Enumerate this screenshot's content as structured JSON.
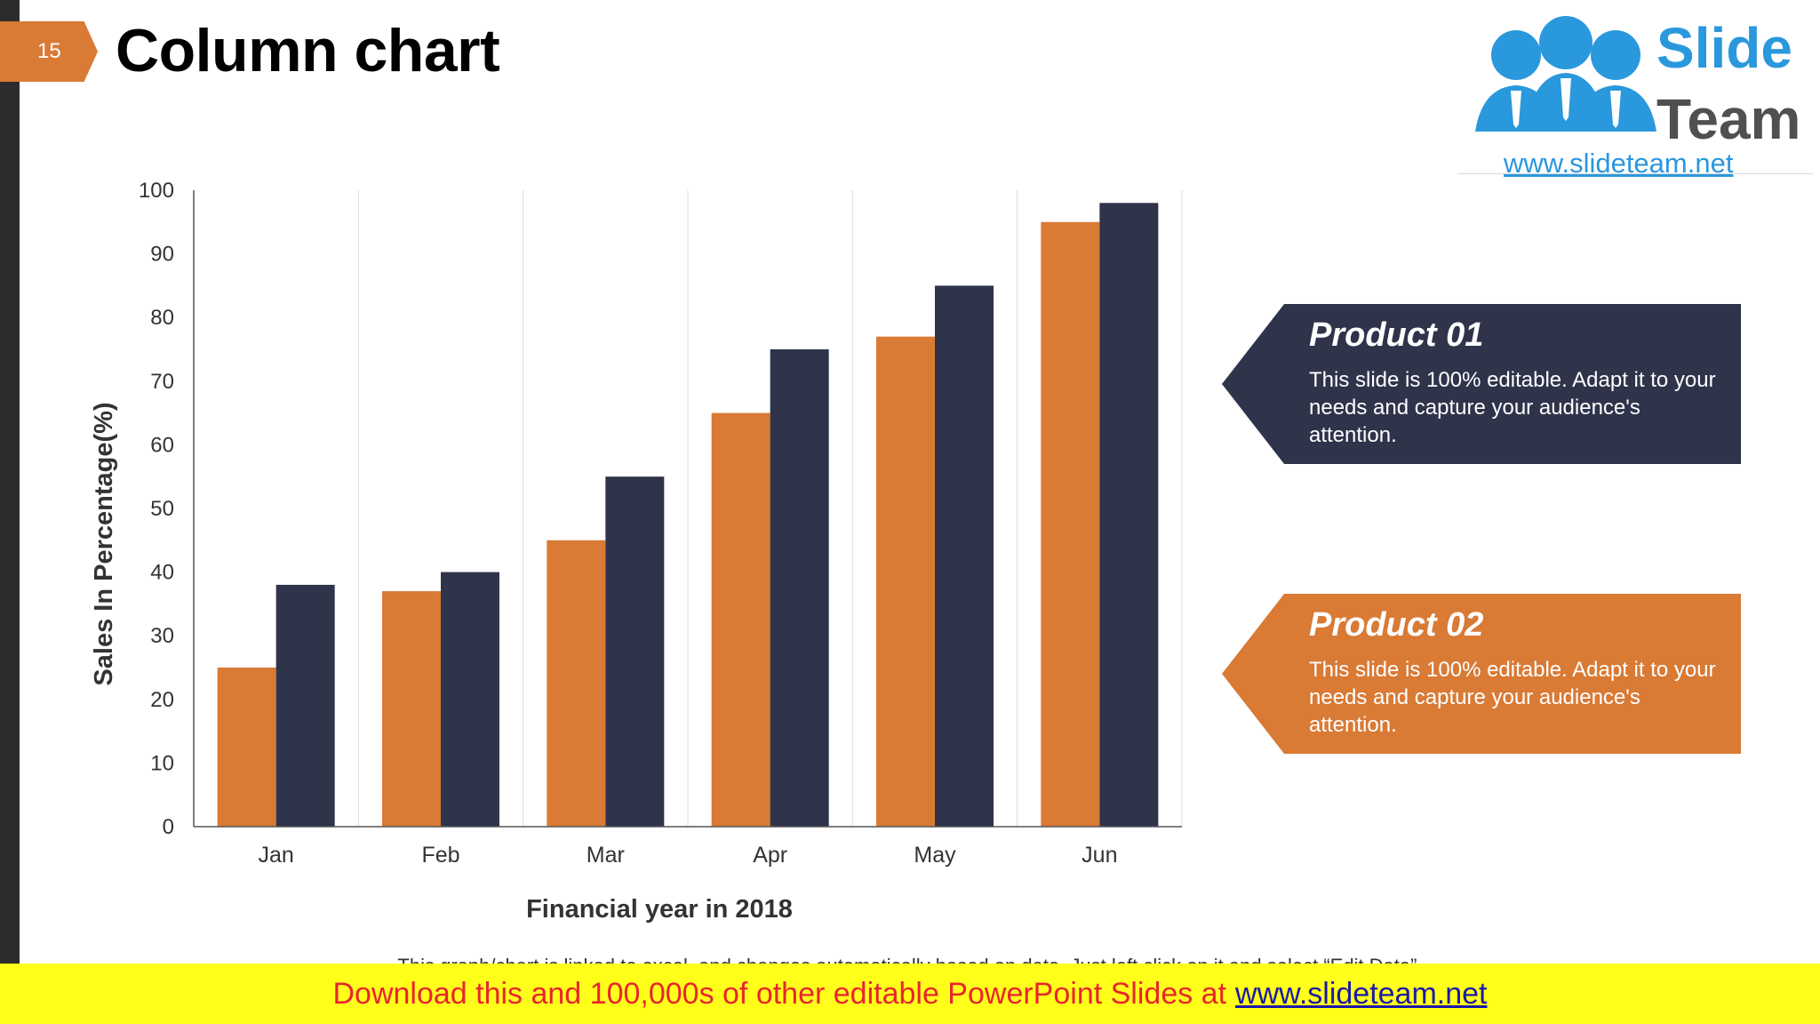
{
  "slide": {
    "page_number": "15",
    "title": "Column chart"
  },
  "logo": {
    "word1": "Slide",
    "word2": "Team",
    "url": "www.slideteam.net"
  },
  "chart_data": {
    "type": "bar",
    "categories": [
      "Jan",
      "Feb",
      "Mar",
      "Apr",
      "May",
      "Jun"
    ],
    "series": [
      {
        "name": "Product 01",
        "color": "#d97a35",
        "values": [
          25,
          37,
          45,
          65,
          77,
          95
        ]
      },
      {
        "name": "Product 02",
        "color": "#2f344b",
        "values": [
          38,
          40,
          55,
          75,
          85,
          98
        ]
      }
    ],
    "xlabel": "Financial year in 2018",
    "ylabel": "Sales In Percentage(%)",
    "ylim": [
      0,
      100
    ],
    "yticks": [
      0,
      10,
      20,
      30,
      40,
      50,
      60,
      70,
      80,
      90,
      100
    ],
    "grid": "vertical separators between categories"
  },
  "callouts": [
    {
      "title": "Product 01",
      "text": "This slide is 100% editable. Adapt it to your needs and capture your audience's attention.",
      "color": "#2f344b"
    },
    {
      "title": "Product 02",
      "text": "This slide is 100% editable. Adapt it to your needs and capture your audience's attention.",
      "color": "#d97a35"
    }
  ],
  "note": "This graph/chart is linked to excel, and changes automatically based on data. Just left click on it and select “Edit Data”.",
  "footer": {
    "text": "Download this and 100,000s of other editable PowerPoint Slides at",
    "link": "www.slideteam.net"
  }
}
